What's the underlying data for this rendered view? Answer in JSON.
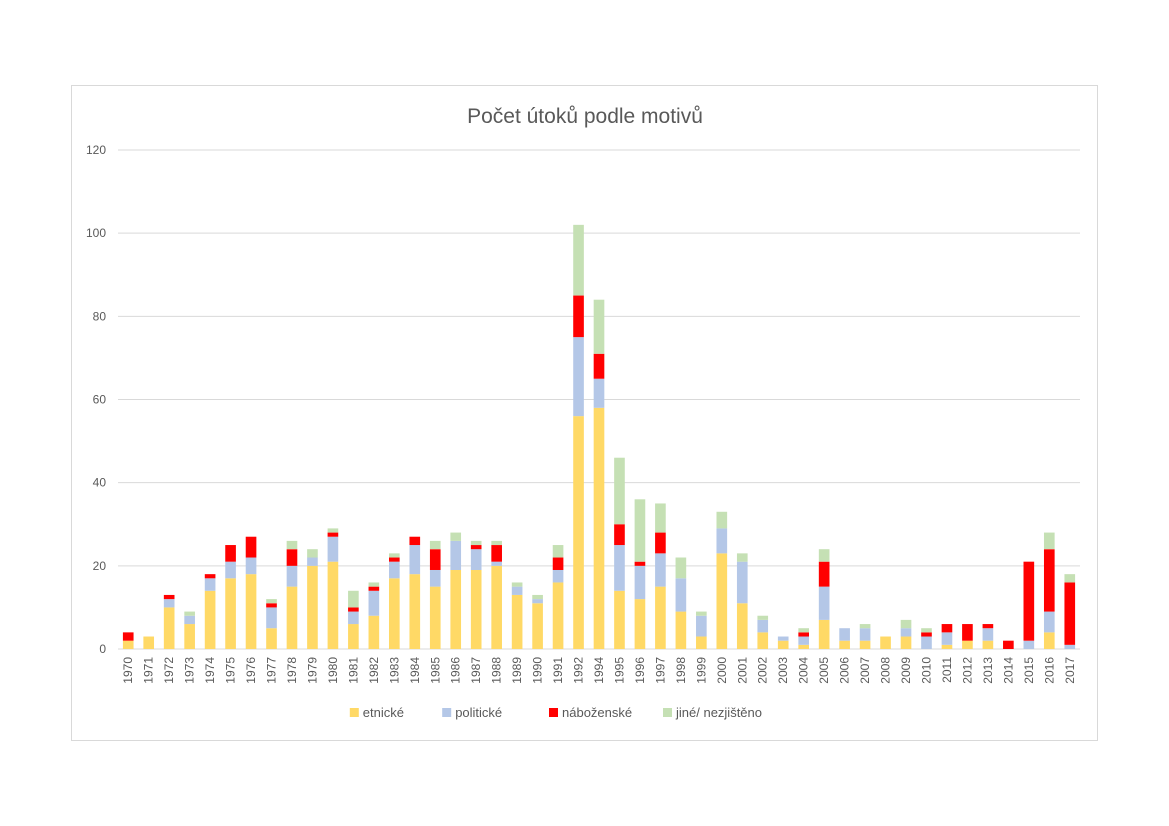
{
  "chart_data": {
    "type": "bar",
    "stacked": true,
    "title": "Počet útoků podle motivů",
    "xlabel": "",
    "ylabel": "",
    "ylim": [
      0,
      120
    ],
    "yticks": [
      0,
      20,
      40,
      60,
      80,
      100,
      120
    ],
    "grid": true,
    "legend_position": "bottom",
    "categories": [
      "1970",
      "1971",
      "1972",
      "1973",
      "1974",
      "1975",
      "1976",
      "1977",
      "1978",
      "1979",
      "1980",
      "1981",
      "1982",
      "1983",
      "1984",
      "1985",
      "1986",
      "1987",
      "1988",
      "1989",
      "1990",
      "1991",
      "1992",
      "1994",
      "1995",
      "1996",
      "1997",
      "1998",
      "1999",
      "2000",
      "2001",
      "2002",
      "2003",
      "2004",
      "2005",
      "2006",
      "2007",
      "2008",
      "2009",
      "2010",
      "2011",
      "2012",
      "2013",
      "2014",
      "2015",
      "2016",
      "2017"
    ],
    "series": [
      {
        "name": "etnické",
        "color": "#ffd966",
        "values": [
          2,
          3,
          10,
          6,
          14,
          17,
          18,
          5,
          15,
          20,
          21,
          6,
          8,
          17,
          18,
          15,
          19,
          19,
          20,
          13,
          11,
          16,
          56,
          58,
          14,
          12,
          15,
          9,
          3,
          23,
          11,
          4,
          2,
          1,
          7,
          2,
          2,
          3,
          3,
          0,
          1,
          2,
          2,
          0,
          0,
          4,
          0
        ]
      },
      {
        "name": "politické",
        "color": "#b4c7e7",
        "values": [
          0,
          0,
          2,
          2,
          3,
          4,
          4,
          5,
          5,
          2,
          6,
          3,
          6,
          4,
          7,
          4,
          7,
          5,
          1,
          2,
          1,
          3,
          19,
          7,
          11,
          8,
          8,
          8,
          5,
          6,
          10,
          3,
          1,
          2,
          8,
          3,
          3,
          0,
          2,
          3,
          3,
          0,
          3,
          0,
          2,
          5,
          1
        ]
      },
      {
        "name": "náboženské",
        "color": "#ff0000",
        "values": [
          2,
          0,
          1,
          0,
          1,
          4,
          5,
          1,
          4,
          0,
          1,
          1,
          1,
          1,
          2,
          5,
          0,
          1,
          4,
          0,
          0,
          3,
          10,
          6,
          5,
          1,
          5,
          0,
          0,
          0,
          0,
          0,
          0,
          1,
          6,
          0,
          0,
          0,
          0,
          1,
          2,
          4,
          1,
          2,
          19,
          15,
          15
        ]
      },
      {
        "name": "jiné/ nezjištěno",
        "color": "#c5e0b4",
        "values": [
          0,
          0,
          0,
          1,
          0,
          0,
          0,
          1,
          2,
          2,
          1,
          4,
          1,
          1,
          0,
          2,
          2,
          1,
          1,
          1,
          1,
          3,
          17,
          13,
          16,
          15,
          7,
          5,
          1,
          4,
          2,
          1,
          0,
          1,
          3,
          0,
          1,
          0,
          2,
          1,
          0,
          0,
          0,
          0,
          0,
          4,
          2
        ]
      }
    ]
  }
}
